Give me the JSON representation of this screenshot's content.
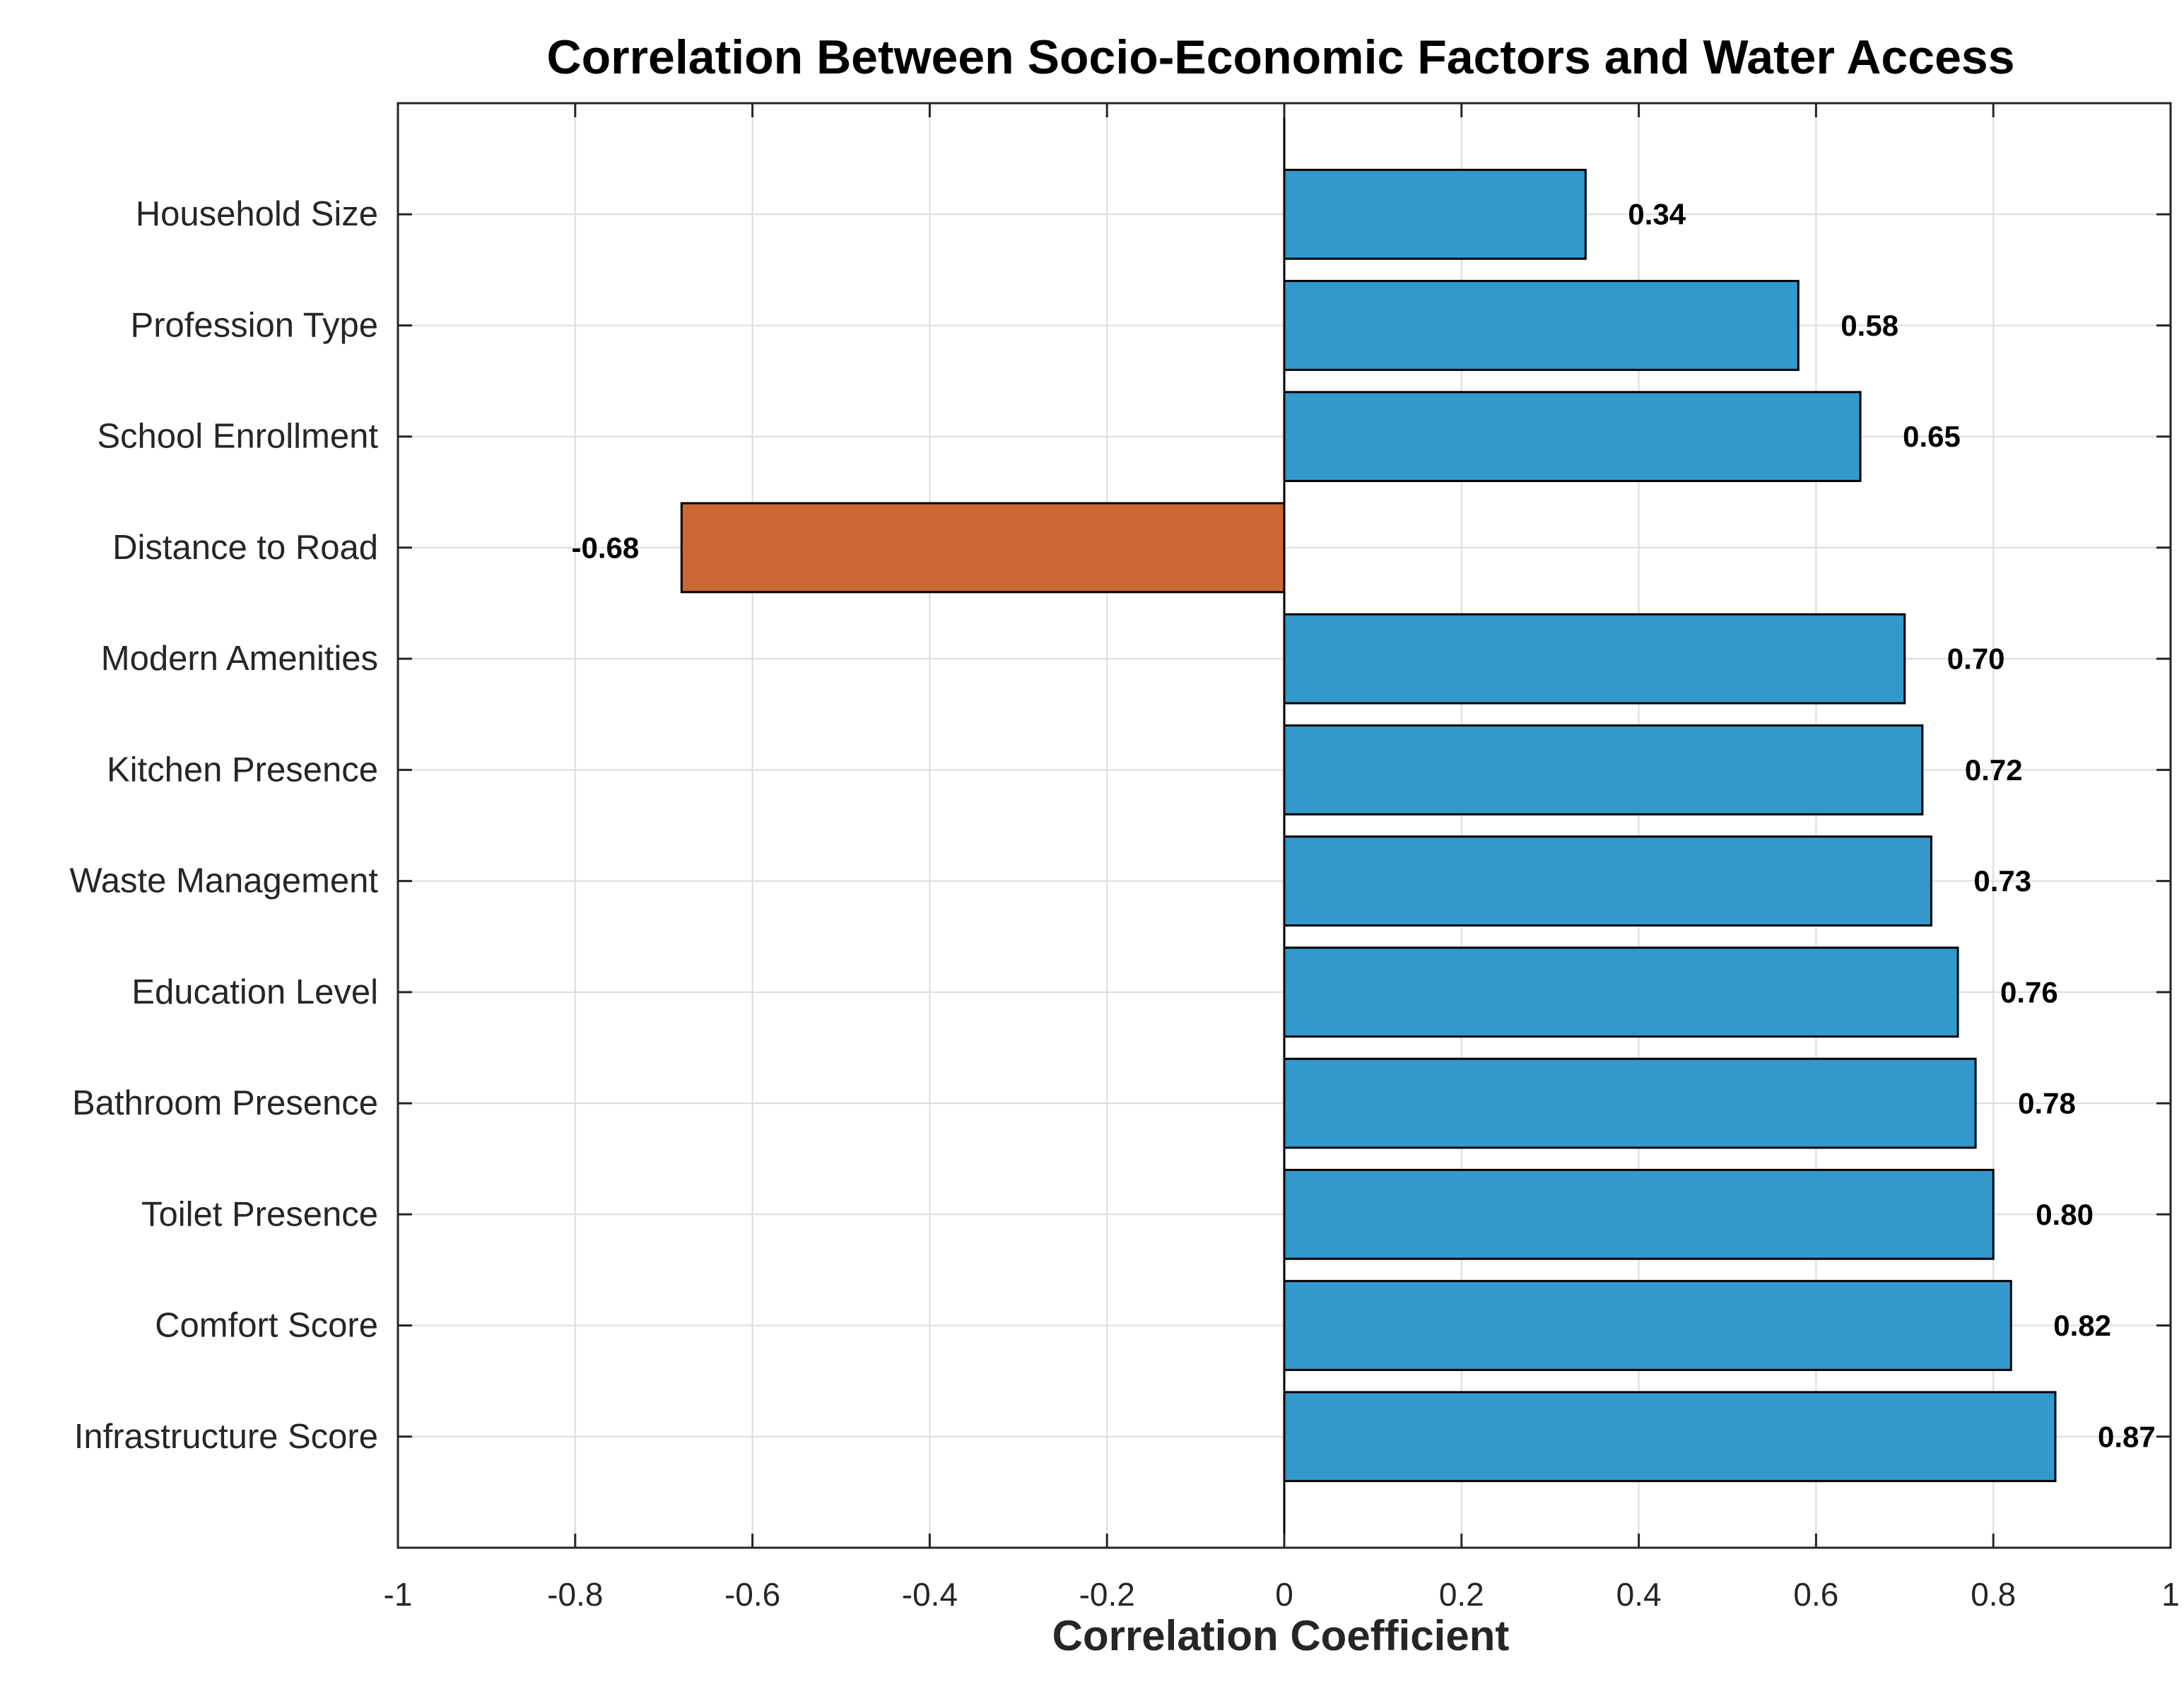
{
  "chart_data": {
    "type": "bar",
    "orientation": "horizontal",
    "title": "Correlation Between Socio-Economic Factors and Water Access",
    "xlabel": "Correlation Coefficient",
    "ylabel": "",
    "xlim": [
      -1,
      1
    ],
    "xticks": [
      -1,
      -0.8,
      -0.6,
      -0.4,
      -0.2,
      0,
      0.2,
      0.4,
      0.6,
      0.8,
      1
    ],
    "xtick_labels": [
      "-1",
      "-0.8",
      "-0.6",
      "-0.4",
      "-0.2",
      "0",
      "0.2",
      "0.4",
      "0.6",
      "0.8",
      "1"
    ],
    "grid": true,
    "categories": [
      "Household Size",
      "Profession Type",
      "School Enrollment",
      "Distance to Road",
      "Modern Amenities",
      "Kitchen Presence",
      "Waste Management",
      "Education Level",
      "Bathroom Presence",
      "Toilet Presence",
      "Comfort Score",
      "Infrastructure Score"
    ],
    "values": [
      0.34,
      0.58,
      0.65,
      -0.68,
      0.7,
      0.72,
      0.73,
      0.76,
      0.78,
      0.8,
      0.82,
      0.87
    ],
    "value_labels": [
      "0.34",
      "0.58",
      "0.65",
      "-0.68",
      "0.70",
      "0.72",
      "0.73",
      "0.76",
      "0.78",
      "0.80",
      "0.82",
      "0.87"
    ],
    "colors": {
      "positive": "#3399cc",
      "negative": "#cc6633",
      "grid": "#dcdcdc",
      "axis": "#262626"
    }
  }
}
